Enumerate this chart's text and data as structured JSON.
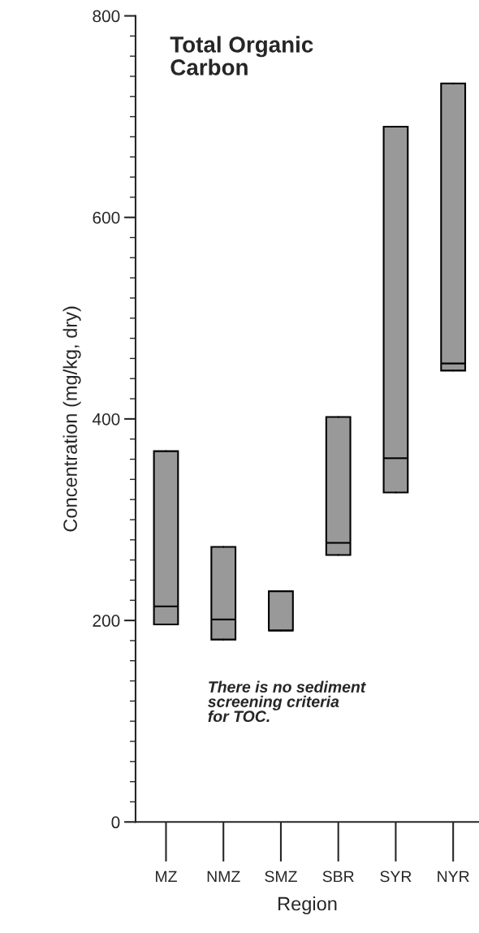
{
  "chart_data": {
    "type": "box",
    "title": "Total Organic\nCarbon",
    "xlabel": "Region",
    "ylabel": "Concentration (mg/kg, dry)",
    "categories": [
      "MZ",
      "NMZ",
      "SMZ",
      "SBR",
      "SYR",
      "NYR"
    ],
    "boxes": [
      {
        "low": 196,
        "q1": 196,
        "median": 214,
        "q3": 368,
        "high": 368
      },
      {
        "low": 181,
        "q1": 181,
        "median": 201,
        "q3": 273,
        "high": 273
      },
      {
        "low": 190,
        "q1": 190,
        "median": 190,
        "q3": 229,
        "high": 229
      },
      {
        "low": 265,
        "q1": 265,
        "median": 277,
        "q3": 402,
        "high": 402
      },
      {
        "low": 327,
        "q1": 327,
        "median": 361,
        "q3": 690,
        "high": 690
      },
      {
        "low": 448,
        "q1": 448,
        "median": 455,
        "q3": 733,
        "high": 733
      }
    ],
    "color": "#999999",
    "ylim": [
      0,
      800
    ],
    "yticks": [
      0,
      200,
      400,
      600,
      800
    ],
    "grid": false,
    "annotations": [
      "There is no sediment\nscreening criteria\nfor TOC."
    ]
  }
}
